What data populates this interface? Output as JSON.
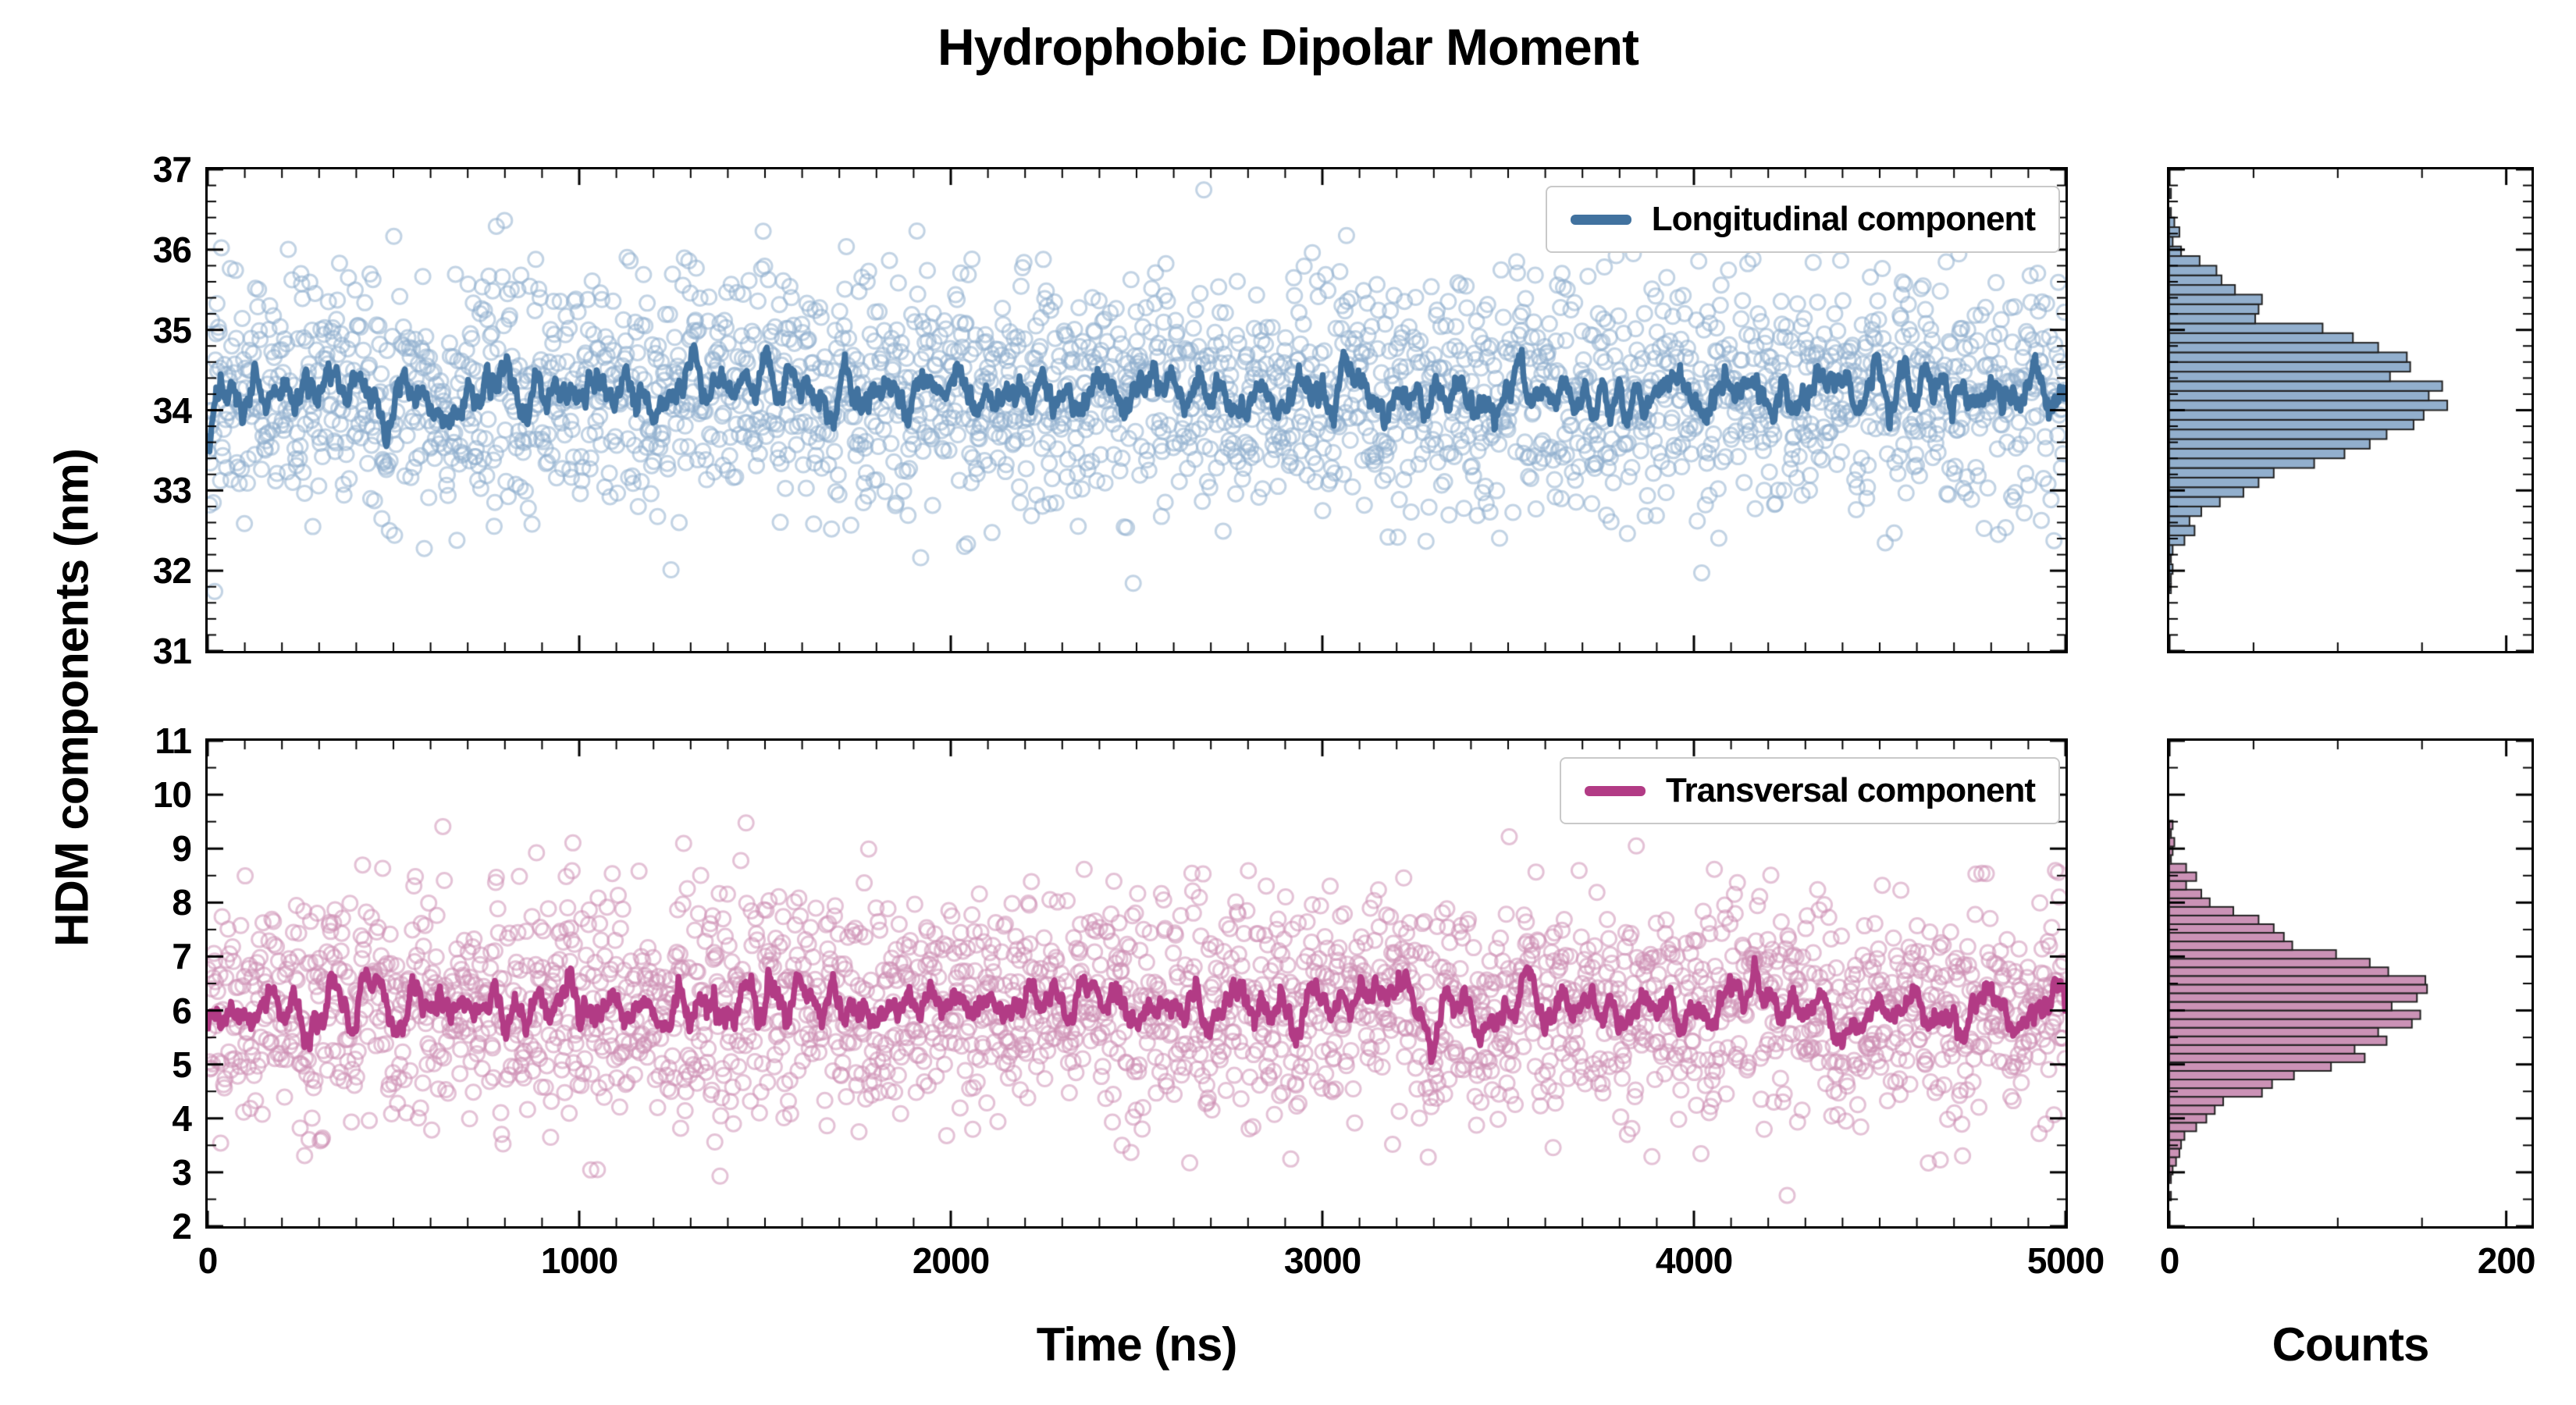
{
  "title": "Hydrophobic Dipolar Moment",
  "ylabel": "HDM components (nm)",
  "xlabel_time": "Time (ns)",
  "xlabel_counts": "Counts",
  "legend": {
    "top_label": "Longitudinal component",
    "bottom_label": "Transversal component"
  },
  "colors": {
    "longitudinal_scatter": "#8FAECE",
    "longitudinal_line": "#41729F",
    "longitudinal_hist_fill": "#7FA1C4",
    "transversal_scatter": "#CE8FB4",
    "transversal_line": "#B23B85",
    "transversal_hist_fill": "#C27FA9",
    "hist_edge": "#222222",
    "axis": "#000000"
  },
  "chart_data": [
    {
      "id": "longitudinal_timeseries",
      "type": "scatter",
      "panel": "top-left",
      "x": {
        "label": "Time (ns)",
        "lim": [
          0,
          5000
        ],
        "ticks": [
          0,
          1000,
          2000,
          3000,
          4000,
          5000
        ],
        "minor_step": 100,
        "show_tick_labels": false
      },
      "y": {
        "label": "HDM components (nm)",
        "lim": [
          31,
          37
        ],
        "ticks": [
          31,
          32,
          33,
          34,
          35,
          36,
          37
        ],
        "minor_step": 0.2,
        "show_tick_labels": true
      },
      "series": [
        {
          "name": "Longitudinal component",
          "kind": "scatter",
          "marker": "open-circle",
          "n_points": 2500,
          "mean": 34.2,
          "std": 0.75,
          "alpha": 0.55,
          "seed": 42,
          "color": "#8FAECE",
          "marker_radius_px": 9.5
        },
        {
          "name": "Longitudinal rolling mean",
          "kind": "line",
          "window": 15,
          "color": "#41729F",
          "linewidth": 7.5
        }
      ],
      "legend": {
        "label": "Longitudinal component",
        "loc": "upper right",
        "line_color": "#41729F"
      }
    },
    {
      "id": "longitudinal_histogram",
      "type": "histogram",
      "panel": "top-right",
      "orientation": "horizontal",
      "source": "longitudinal_timeseries",
      "x": {
        "label": "Counts",
        "lim": [
          0,
          215
        ],
        "ticks": [
          0,
          200
        ],
        "minor_step": 50,
        "show_tick_labels": false
      },
      "y": {
        "lim": [
          31,
          37
        ],
        "ticks": [
          31,
          32,
          33,
          34,
          35,
          36,
          37
        ],
        "minor_step": 0.2,
        "show_tick_labels": false
      },
      "bin_width": 0.12,
      "n_points": 2500,
      "mean": 34.2,
      "std": 0.75,
      "peak_count_approx": 155,
      "fill_color": "#7FA1C4",
      "edge_color": "#222222",
      "alpha": 0.85
    },
    {
      "id": "transversal_timeseries",
      "type": "scatter",
      "panel": "bottom-left",
      "x": {
        "label": "Time (ns)",
        "lim": [
          0,
          5000
        ],
        "ticks": [
          0,
          1000,
          2000,
          3000,
          4000,
          5000
        ],
        "minor_step": 100,
        "show_tick_labels": true
      },
      "y": {
        "label": "HDM components (nm)",
        "lim": [
          2,
          11
        ],
        "ticks": [
          2,
          3,
          4,
          5,
          6,
          7,
          8,
          9,
          10,
          11
        ],
        "minor_step": 0.5,
        "show_tick_labels": true
      },
      "series": [
        {
          "name": "Transversal component",
          "kind": "scatter",
          "marker": "open-circle",
          "n_points": 2500,
          "mean": 6.05,
          "std": 1.05,
          "alpha": 0.55,
          "seed": 1337,
          "color": "#CE8FB4",
          "marker_radius_px": 9.5
        },
        {
          "name": "Transversal rolling mean",
          "kind": "line",
          "window": 15,
          "color": "#B23B85",
          "linewidth": 7.5
        }
      ],
      "legend": {
        "label": "Transversal component",
        "loc": "upper right",
        "line_color": "#B23B85"
      }
    },
    {
      "id": "transversal_histogram",
      "type": "histogram",
      "panel": "bottom-right",
      "orientation": "horizontal",
      "source": "transversal_timeseries",
      "x": {
        "label": "Counts",
        "lim": [
          0,
          215
        ],
        "ticks": [
          0,
          200
        ],
        "minor_step": 50,
        "show_tick_labels": true
      },
      "y": {
        "lim": [
          2,
          11
        ],
        "ticks": [
          2,
          3,
          4,
          5,
          6,
          7,
          8,
          9,
          10,
          11
        ],
        "minor_step": 0.5,
        "show_tick_labels": false
      },
      "bin_width": 0.16,
      "n_points": 2500,
      "mean": 6.05,
      "std": 1.05,
      "peak_count_approx": 150,
      "fill_color": "#C27FA9",
      "edge_color": "#222222",
      "alpha": 0.85
    }
  ]
}
